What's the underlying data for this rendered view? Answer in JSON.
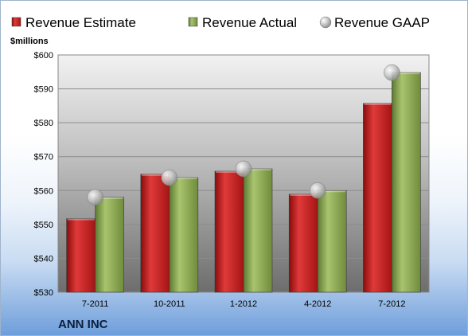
{
  "company": "ANN INC",
  "chart_data": {
    "type": "bar",
    "ylabel": "$millions",
    "categories": [
      "7-2011",
      "10-2011",
      "1-2012",
      "4-2012",
      "7-2012"
    ],
    "series": [
      {
        "name": "Revenue Estimate",
        "kind": "bar",
        "color": "#cc2020",
        "values": [
          551.7,
          564.8,
          565.7,
          558.9,
          585.7
        ]
      },
      {
        "name": "Revenue Actual",
        "kind": "bar",
        "color": "#8fae5a",
        "values": [
          558.0,
          563.8,
          566.4,
          560.0,
          594.8
        ]
      },
      {
        "name": "Revenue GAAP",
        "kind": "marker",
        "color": "#b8b8b8",
        "values": [
          558.0,
          563.8,
          566.4,
          560.0,
          594.8
        ]
      }
    ],
    "ylim": [
      530,
      600
    ],
    "yticks": [
      530,
      540,
      550,
      560,
      570,
      580,
      590,
      600
    ],
    "ytick_labels": [
      "$530",
      "$540",
      "$550",
      "$560",
      "$570",
      "$580",
      "$590",
      "$600"
    ],
    "grid": true,
    "legend_position": "top"
  }
}
